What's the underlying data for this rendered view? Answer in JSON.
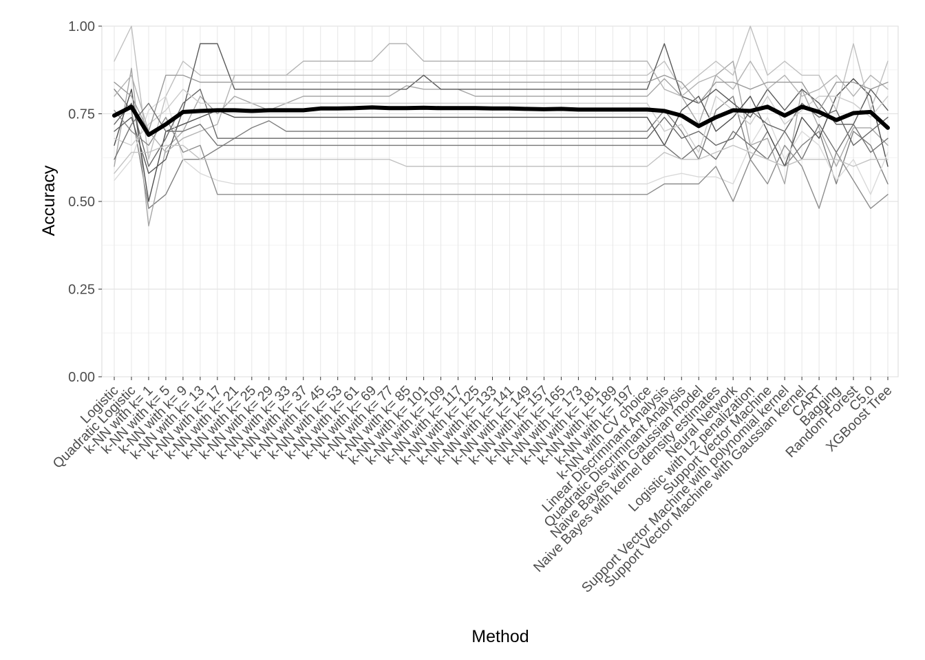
{
  "chart_data": {
    "type": "line",
    "xlabel": "Method",
    "ylabel": "Accuracy",
    "ylim": [
      0,
      1
    ],
    "y_ticks": [
      "0.00",
      "0.25",
      "0.50",
      "0.75",
      "1.00"
    ],
    "grid": true,
    "legend": "none",
    "categories": [
      "Logistic",
      "Quadratic Logistic",
      "k-NN with k= 1",
      "k-NN with k= 5",
      "k-NN with k= 9",
      "k-NN with k= 13",
      "k-NN with k= 17",
      "k-NN with k= 21",
      "k-NN with k= 25",
      "k-NN with k= 29",
      "k-NN with k= 33",
      "k-NN with k= 37",
      "k-NN with k= 45",
      "k-NN with k= 53",
      "k-NN with k= 61",
      "k-NN with k= 69",
      "k-NN with k= 77",
      "k-NN with k= 85",
      "k-NN with k= 101",
      "k-NN with k= 109",
      "k-NN with k= 117",
      "k-NN with k= 125",
      "k-NN with k= 133",
      "k-NN with k= 141",
      "k-NN with k= 149",
      "k-NN with k= 157",
      "k-NN with k= 165",
      "k-NN with k= 173",
      "k-NN with k= 181",
      "k-NN with k= 189",
      "k-NN with k= 197",
      "k-NN with CV choice",
      "Linear Discriminant Analysis",
      "Quadratic Discriminant Analysis",
      "Naive Bayes with Gaussian model",
      "Naive Bayes with kernel density estimates",
      "Neural Network",
      "Logistic with L2 penalization",
      "Support Vector Machine",
      "Support Vector Machine with polynomial kernel",
      "Support Vector Machine with Gaussian kernel",
      "CART",
      "Bagging",
      "Random Forest",
      "C5.0",
      "XGBoost Tree"
    ],
    "series": [
      {
        "color": "#000000",
        "values": [
          0.745,
          0.77,
          0.69,
          0.72,
          0.755,
          0.758,
          0.76,
          0.76,
          0.758,
          0.76,
          0.76,
          0.76,
          0.765,
          0.765,
          0.766,
          0.768,
          0.766,
          0.766,
          0.767,
          0.766,
          0.766,
          0.766,
          0.765,
          0.765,
          0.764,
          0.763,
          0.764,
          0.762,
          0.762,
          0.762,
          0.762,
          0.762,
          0.758,
          0.745,
          0.715,
          0.74,
          0.76,
          0.758,
          0.77,
          0.745,
          0.77,
          0.755,
          0.732,
          0.752,
          0.755,
          0.71
        ]
      },
      {
        "color": "#7f7f7f",
        "values": [
          0.82,
          0.76,
          0.48,
          0.52,
          0.62,
          0.62,
          0.65,
          0.68,
          0.71,
          0.73,
          0.7,
          0.7,
          0.7,
          0.7,
          0.7,
          0.7,
          0.7,
          0.7,
          0.7,
          0.7,
          0.7,
          0.7,
          0.7,
          0.7,
          0.7,
          0.7,
          0.7,
          0.7,
          0.7,
          0.7,
          0.7,
          0.7,
          0.76,
          0.7,
          0.62,
          0.76,
          0.8,
          0.62,
          0.7,
          0.6,
          0.66,
          0.7,
          0.55,
          0.7,
          0.66,
          0.55
        ]
      },
      {
        "color": "#a6a6a6",
        "values": [
          0.6,
          0.88,
          0.43,
          0.65,
          0.7,
          0.8,
          0.75,
          0.8,
          0.78,
          0.76,
          0.78,
          0.8,
          0.8,
          0.8,
          0.8,
          0.8,
          0.8,
          0.83,
          0.82,
          0.82,
          0.82,
          0.8,
          0.8,
          0.8,
          0.8,
          0.8,
          0.8,
          0.8,
          0.8,
          0.8,
          0.8,
          0.8,
          0.85,
          0.8,
          0.72,
          0.86,
          0.9,
          0.66,
          0.68,
          0.55,
          0.82,
          0.71,
          0.6,
          0.71,
          0.71,
          0.66
        ]
      },
      {
        "color": "#4d4d4d",
        "values": [
          0.66,
          0.82,
          0.5,
          0.7,
          0.72,
          0.74,
          0.76,
          0.74,
          0.74,
          0.74,
          0.74,
          0.74,
          0.74,
          0.74,
          0.74,
          0.74,
          0.74,
          0.74,
          0.74,
          0.74,
          0.74,
          0.74,
          0.74,
          0.74,
          0.74,
          0.74,
          0.74,
          0.74,
          0.74,
          0.74,
          0.74,
          0.74,
          0.66,
          0.76,
          0.8,
          0.7,
          0.74,
          0.8,
          0.7,
          0.6,
          0.74,
          0.68,
          0.8,
          0.85,
          0.8,
          0.6
        ]
      },
      {
        "color": "#bfbfbf",
        "values": [
          0.9,
          1.0,
          0.62,
          0.8,
          0.9,
          0.86,
          0.86,
          0.86,
          0.86,
          0.86,
          0.86,
          0.86,
          0.86,
          0.86,
          0.86,
          0.86,
          0.86,
          0.86,
          0.86,
          0.86,
          0.86,
          0.86,
          0.86,
          0.86,
          0.86,
          0.86,
          0.86,
          0.86,
          0.86,
          0.86,
          0.86,
          0.86,
          0.9,
          0.82,
          0.86,
          0.9,
          0.86,
          1.0,
          0.86,
          0.9,
          0.86,
          0.86,
          0.76,
          0.95,
          0.76,
          0.9
        ]
      },
      {
        "color": "#595959",
        "values": [
          0.7,
          0.74,
          0.58,
          0.62,
          0.76,
          0.95,
          0.95,
          0.82,
          0.82,
          0.82,
          0.82,
          0.82,
          0.82,
          0.82,
          0.82,
          0.82,
          0.82,
          0.82,
          0.86,
          0.82,
          0.82,
          0.82,
          0.82,
          0.82,
          0.82,
          0.82,
          0.82,
          0.82,
          0.82,
          0.82,
          0.82,
          0.82,
          0.95,
          0.8,
          0.78,
          0.82,
          0.78,
          0.74,
          0.82,
          0.76,
          0.82,
          0.78,
          0.72,
          0.72,
          0.82,
          0.76
        ]
      },
      {
        "color": "#d9d9d9",
        "values": [
          0.56,
          0.62,
          0.76,
          0.8,
          0.62,
          0.58,
          0.56,
          0.55,
          0.55,
          0.55,
          0.55,
          0.55,
          0.55,
          0.55,
          0.55,
          0.55,
          0.55,
          0.55,
          0.55,
          0.55,
          0.55,
          0.55,
          0.55,
          0.55,
          0.55,
          0.55,
          0.55,
          0.55,
          0.55,
          0.55,
          0.55,
          0.55,
          0.57,
          0.58,
          0.57,
          0.57,
          0.55,
          0.66,
          0.74,
          0.62,
          0.7,
          0.66,
          0.56,
          0.62,
          0.52,
          0.64
        ]
      },
      {
        "color": "#8c8c8c",
        "values": [
          0.76,
          0.7,
          0.66,
          0.74,
          0.64,
          0.66,
          0.52,
          0.52,
          0.52,
          0.52,
          0.52,
          0.52,
          0.52,
          0.52,
          0.52,
          0.52,
          0.52,
          0.52,
          0.52,
          0.52,
          0.52,
          0.52,
          0.52,
          0.52,
          0.52,
          0.52,
          0.52,
          0.52,
          0.52,
          0.52,
          0.52,
          0.52,
          0.55,
          0.55,
          0.55,
          0.6,
          0.5,
          0.62,
          0.55,
          0.66,
          0.6,
          0.48,
          0.64,
          0.56,
          0.48,
          0.52
        ]
      },
      {
        "color": "#b3b3b3",
        "values": [
          0.8,
          0.86,
          0.7,
          0.64,
          0.68,
          0.7,
          0.72,
          0.86,
          0.86,
          0.86,
          0.86,
          0.9,
          0.9,
          0.9,
          0.9,
          0.9,
          0.95,
          0.95,
          0.9,
          0.9,
          0.9,
          0.9,
          0.9,
          0.9,
          0.9,
          0.9,
          0.9,
          0.9,
          0.9,
          0.9,
          0.9,
          0.9,
          0.82,
          0.8,
          0.84,
          0.86,
          0.82,
          0.9,
          0.82,
          0.86,
          0.8,
          0.82,
          0.86,
          0.8,
          0.86,
          0.82
        ]
      },
      {
        "color": "#666666",
        "values": [
          0.72,
          0.78,
          0.6,
          0.68,
          0.78,
          0.82,
          0.68,
          0.68,
          0.68,
          0.68,
          0.68,
          0.68,
          0.68,
          0.68,
          0.68,
          0.68,
          0.68,
          0.68,
          0.68,
          0.68,
          0.68,
          0.68,
          0.68,
          0.68,
          0.68,
          0.68,
          0.68,
          0.68,
          0.68,
          0.68,
          0.68,
          0.68,
          0.74,
          0.68,
          0.7,
          0.66,
          0.68,
          0.76,
          0.72,
          0.7,
          0.78,
          0.74,
          0.76,
          0.66,
          0.7,
          0.74
        ]
      },
      {
        "color": "#cccccc",
        "values": [
          0.68,
          0.66,
          0.72,
          0.76,
          0.82,
          0.78,
          0.78,
          0.78,
          0.78,
          0.78,
          0.78,
          0.78,
          0.78,
          0.78,
          0.78,
          0.78,
          0.78,
          0.78,
          0.78,
          0.78,
          0.78,
          0.78,
          0.78,
          0.78,
          0.78,
          0.78,
          0.78,
          0.78,
          0.78,
          0.78,
          0.78,
          0.78,
          0.7,
          0.72,
          0.64,
          0.8,
          0.76,
          0.72,
          0.8,
          0.72,
          0.76,
          0.8,
          0.8,
          0.78,
          0.74,
          0.8
        ]
      },
      {
        "color": "#999999",
        "values": [
          0.84,
          0.8,
          0.7,
          0.86,
          0.86,
          0.84,
          0.84,
          0.84,
          0.84,
          0.84,
          0.84,
          0.84,
          0.84,
          0.84,
          0.84,
          0.84,
          0.84,
          0.84,
          0.84,
          0.84,
          0.84,
          0.84,
          0.84,
          0.84,
          0.84,
          0.84,
          0.84,
          0.84,
          0.84,
          0.84,
          0.84,
          0.84,
          0.86,
          0.84,
          0.78,
          0.84,
          0.84,
          0.82,
          0.84,
          0.84,
          0.84,
          0.76,
          0.84,
          0.84,
          0.82,
          0.84
        ]
      },
      {
        "color": "#737373",
        "values": [
          0.62,
          0.72,
          0.78,
          0.7,
          0.7,
          0.72,
          0.66,
          0.66,
          0.66,
          0.66,
          0.66,
          0.66,
          0.66,
          0.66,
          0.66,
          0.66,
          0.66,
          0.66,
          0.66,
          0.66,
          0.66,
          0.66,
          0.66,
          0.66,
          0.66,
          0.66,
          0.66,
          0.66,
          0.66,
          0.66,
          0.66,
          0.66,
          0.66,
          0.62,
          0.66,
          0.62,
          0.7,
          0.66,
          0.62,
          0.7,
          0.62,
          0.72,
          0.64,
          0.72,
          0.64,
          0.68
        ]
      },
      {
        "color": "#c2c2c2",
        "values": [
          0.58,
          0.64,
          0.64,
          0.66,
          0.66,
          0.62,
          0.62,
          0.62,
          0.62,
          0.62,
          0.62,
          0.62,
          0.62,
          0.62,
          0.62,
          0.62,
          0.62,
          0.6,
          0.6,
          0.6,
          0.6,
          0.6,
          0.6,
          0.6,
          0.6,
          0.6,
          0.6,
          0.6,
          0.6,
          0.6,
          0.6,
          0.6,
          0.64,
          0.62,
          0.62,
          0.64,
          0.66,
          0.64,
          0.62,
          0.6,
          0.62,
          0.62,
          0.62,
          0.6,
          0.62,
          0.62
        ]
      }
    ]
  }
}
